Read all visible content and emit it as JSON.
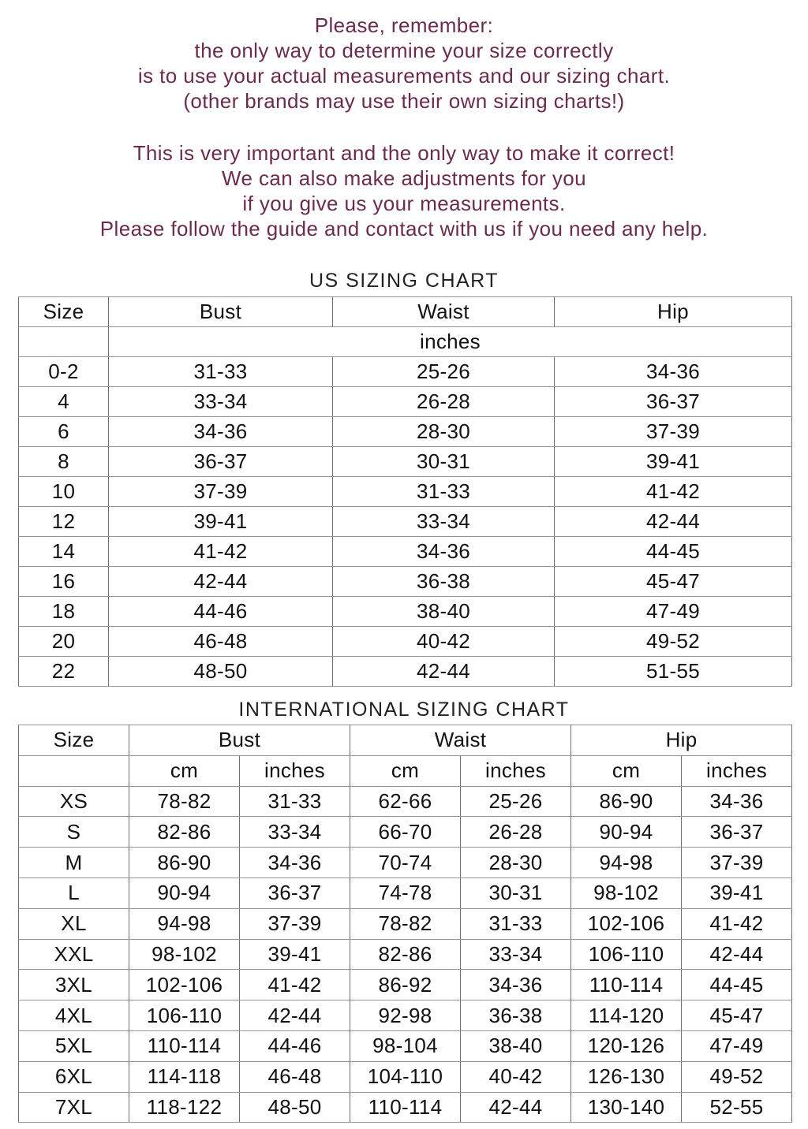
{
  "intro": {
    "text_color": "#6d2b4c",
    "paragraph1": [
      "Please, remember:",
      "the only way to determine your size correctly",
      "is to use your actual measurements and our sizing chart.",
      "(other brands may use their own sizing charts!)"
    ],
    "paragraph2": [
      "This is very important and the only way to make it correct!",
      "We can also make adjustments for you",
      "if you give us your measurements.",
      "Please follow the guide and contact with us if you need any help."
    ]
  },
  "us_chart": {
    "title": "US SIZING CHART",
    "columns": [
      "Size",
      "Bust",
      "Waist",
      "Hip"
    ],
    "unit_row": "inches",
    "rows": [
      {
        "size": "0-2",
        "bust": "31-33",
        "waist": "25-26",
        "hip": "34-36"
      },
      {
        "size": "4",
        "bust": "33-34",
        "waist": "26-28",
        "hip": "36-37"
      },
      {
        "size": "6",
        "bust": "34-36",
        "waist": "28-30",
        "hip": "37-39"
      },
      {
        "size": "8",
        "bust": "36-37",
        "waist": "30-31",
        "hip": "39-41"
      },
      {
        "size": "10",
        "bust": "37-39",
        "waist": "31-33",
        "hip": "41-42"
      },
      {
        "size": "12",
        "bust": "39-41",
        "waist": "33-34",
        "hip": "42-44"
      },
      {
        "size": "14",
        "bust": "41-42",
        "waist": "34-36",
        "hip": "44-45"
      },
      {
        "size": "16",
        "bust": "42-44",
        "waist": "36-38",
        "hip": "45-47"
      },
      {
        "size": "18",
        "bust": "44-46",
        "waist": "38-40",
        "hip": "47-49"
      },
      {
        "size": "20",
        "bust": "46-48",
        "waist": "40-42",
        "hip": "49-52"
      },
      {
        "size": "22",
        "bust": "48-50",
        "waist": "42-44",
        "hip": "51-55"
      }
    ]
  },
  "intl_chart": {
    "title": "INTERNATIONAL SIZING CHART",
    "columns": [
      "Size",
      "Bust",
      "Waist",
      "Hip"
    ],
    "sub_columns": [
      "cm",
      "inches",
      "cm",
      "inches",
      "cm",
      "inches"
    ],
    "rows": [
      {
        "size": "XS",
        "bust_cm": "78-82",
        "bust_in": "31-33",
        "waist_cm": "62-66",
        "waist_in": "25-26",
        "hip_cm": "86-90",
        "hip_in": "34-36"
      },
      {
        "size": "S",
        "bust_cm": "82-86",
        "bust_in": "33-34",
        "waist_cm": "66-70",
        "waist_in": "26-28",
        "hip_cm": "90-94",
        "hip_in": "36-37"
      },
      {
        "size": "M",
        "bust_cm": "86-90",
        "bust_in": "34-36",
        "waist_cm": "70-74",
        "waist_in": "28-30",
        "hip_cm": "94-98",
        "hip_in": "37-39"
      },
      {
        "size": "L",
        "bust_cm": "90-94",
        "bust_in": "36-37",
        "waist_cm": "74-78",
        "waist_in": "30-31",
        "hip_cm": "98-102",
        "hip_in": "39-41"
      },
      {
        "size": "XL",
        "bust_cm": "94-98",
        "bust_in": "37-39",
        "waist_cm": "78-82",
        "waist_in": "31-33",
        "hip_cm": "102-106",
        "hip_in": "41-42"
      },
      {
        "size": "XXL",
        "bust_cm": "98-102",
        "bust_in": "39-41",
        "waist_cm": "82-86",
        "waist_in": "33-34",
        "hip_cm": "106-110",
        "hip_in": "42-44"
      },
      {
        "size": "3XL",
        "bust_cm": "102-106",
        "bust_in": "41-42",
        "waist_cm": "86-92",
        "waist_in": "34-36",
        "hip_cm": "110-114",
        "hip_in": "44-45"
      },
      {
        "size": "4XL",
        "bust_cm": "106-110",
        "bust_in": "42-44",
        "waist_cm": "92-98",
        "waist_in": "36-38",
        "hip_cm": "114-120",
        "hip_in": "45-47"
      },
      {
        "size": "5XL",
        "bust_cm": "110-114",
        "bust_in": "44-46",
        "waist_cm": "98-104",
        "waist_in": "38-40",
        "hip_cm": "120-126",
        "hip_in": "47-49"
      },
      {
        "size": "6XL",
        "bust_cm": "114-118",
        "bust_in": "46-48",
        "waist_cm": "104-110",
        "waist_in": "40-42",
        "hip_cm": "126-130",
        "hip_in": "49-52"
      },
      {
        "size": "7XL",
        "bust_cm": "118-122",
        "bust_in": "48-50",
        "waist_cm": "110-114",
        "waist_in": "42-44",
        "hip_cm": "130-140",
        "hip_in": "52-55"
      }
    ]
  }
}
